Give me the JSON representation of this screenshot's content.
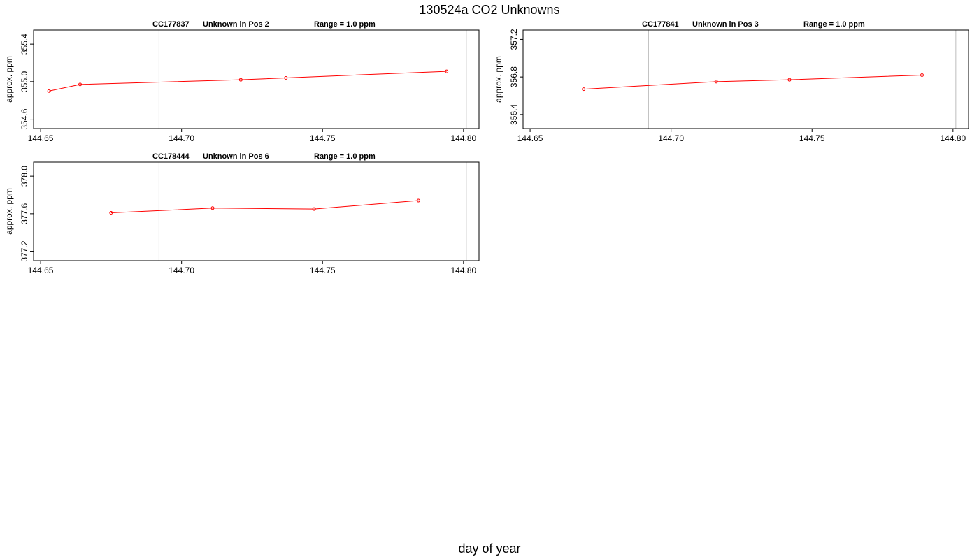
{
  "figure": {
    "title": "130524a  CO2 Unknowns",
    "xlabel": "day of year"
  },
  "chart_data": [
    {
      "type": "line",
      "title_parts": [
        "CC177837",
        "Unknown in Pos 2",
        "Range = 1.0 ppm"
      ],
      "xlabel": "",
      "ylabel": "approx. ppm",
      "xlim": [
        144.6475,
        144.8055
      ],
      "ylim": [
        354.5,
        355.55
      ],
      "xticks": [
        144.65,
        144.7,
        144.75,
        144.8
      ],
      "xtick_labels": [
        "144.65",
        "144.70",
        "144.75",
        "144.80"
      ],
      "yticks": [
        354.6,
        355.0,
        355.4
      ],
      "ytick_labels": [
        "354.6",
        "355.0",
        "355.4"
      ],
      "vlines": [
        144.692,
        144.801
      ],
      "series": [
        {
          "color": "#ff0000",
          "x": [
            144.653,
            144.664,
            144.721,
            144.737,
            144.794
          ],
          "y": [
            354.9,
            354.97,
            355.02,
            355.04,
            355.11
          ]
        }
      ]
    },
    {
      "type": "line",
      "title_parts": [
        "CC177841",
        "Unknown in Pos 3",
        "Range = 1.0 ppm"
      ],
      "xlabel": "",
      "ylabel": "approx. ppm",
      "xlim": [
        144.6475,
        144.8055
      ],
      "ylim": [
        356.25,
        357.3
      ],
      "xticks": [
        144.65,
        144.7,
        144.75,
        144.8
      ],
      "xtick_labels": [
        "144.65",
        "144.70",
        "144.75",
        "144.80"
      ],
      "yticks": [
        356.4,
        356.8,
        357.2
      ],
      "ytick_labels": [
        "356.4",
        "356.8",
        "357.2"
      ],
      "vlines": [
        144.692,
        144.801
      ],
      "series": [
        {
          "color": "#ff0000",
          "x": [
            144.669,
            144.716,
            144.742,
            144.789
          ],
          "y": [
            356.67,
            356.75,
            356.77,
            356.82
          ]
        }
      ]
    },
    {
      "type": "line",
      "title_parts": [
        "CC178444",
        "Unknown in Pos 6",
        "Range = 1.0 ppm"
      ],
      "xlabel": "",
      "ylabel": "approx. ppm",
      "xlim": [
        144.6475,
        144.8055
      ],
      "ylim": [
        377.1,
        378.15
      ],
      "xticks": [
        144.65,
        144.7,
        144.75,
        144.8
      ],
      "xtick_labels": [
        "144.65",
        "144.70",
        "144.75",
        "144.80"
      ],
      "yticks": [
        377.2,
        377.6,
        378.0
      ],
      "ytick_labels": [
        "377.2",
        "377.6",
        "378.0"
      ],
      "vlines": [
        144.692,
        144.801
      ],
      "series": [
        {
          "color": "#ff0000",
          "x": [
            144.675,
            144.711,
            144.747,
            144.784
          ],
          "y": [
            377.61,
            377.66,
            377.65,
            377.74
          ]
        }
      ]
    }
  ]
}
